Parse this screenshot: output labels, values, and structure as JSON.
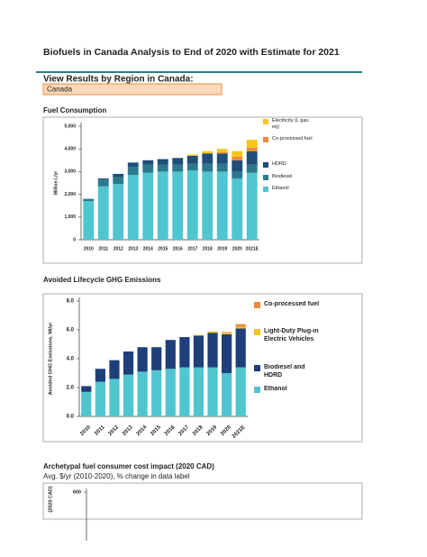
{
  "header": {
    "title": "Biofuels in Canada Analysis to End of 2020 with Estimate for 2021",
    "section": "View Results by Region in Canada:",
    "region": "Canada"
  },
  "chart_data": [
    {
      "type": "bar",
      "stacked": true,
      "title": "Fuel Consumption",
      "ylabel": "Million L/yr",
      "categories": [
        "2010",
        "2011",
        "2012",
        "2013",
        "2014",
        "2015",
        "2016",
        "2017",
        "2018",
        "2019",
        "2020",
        "2021E"
      ],
      "ylim": [
        0,
        5000
      ],
      "yticks": [
        0,
        {
          "value": 1000,
          "label": "1,000"
        },
        {
          "value": 2000,
          "label": "2,000"
        },
        {
          "value": 3000,
          "label": "3,000"
        },
        {
          "value": 4000,
          "label": "4,000"
        },
        {
          "value": 5000,
          "label": "5,000"
        }
      ],
      "series": [
        {
          "name": "Ethanol",
          "color": "#4fc6cf",
          "values": [
            1700,
            2350,
            2450,
            2850,
            2950,
            3000,
            3000,
            3050,
            3000,
            3000,
            2700,
            2950
          ]
        },
        {
          "name": "Biodiesel",
          "color": "#2a7a8c",
          "values": [
            100,
            300,
            300,
            350,
            350,
            300,
            300,
            300,
            350,
            350,
            300,
            350
          ]
        },
        {
          "name": "HDRD",
          "color": "#1f4e79",
          "values": [
            0,
            50,
            150,
            200,
            200,
            250,
            300,
            350,
            450,
            450,
            500,
            600
          ]
        },
        {
          "name": "Co-processed fuel",
          "color": "#f08a3c",
          "values": [
            0,
            0,
            0,
            0,
            0,
            0,
            0,
            0,
            0,
            50,
            150,
            150
          ]
        },
        {
          "name": "Electricity (L gas. eq)",
          "color": "#f5c518",
          "values": [
            0,
            0,
            0,
            0,
            0,
            0,
            0,
            50,
            100,
            150,
            250,
            350
          ]
        }
      ]
    },
    {
      "type": "bar",
      "stacked": true,
      "title": "Avoided Lifecycle GHG Emissions",
      "ylabel": "Avoided GHG Emissions, Mt/yr",
      "categories": [
        "2010",
        "2011",
        "2012",
        "2013",
        "2014",
        "2015",
        "2016",
        "2017",
        "2018",
        "2019",
        "2020",
        "2021E"
      ],
      "ylim": [
        0,
        8
      ],
      "yticks": [
        {
          "value": 0,
          "label": "0.0"
        },
        {
          "value": 2,
          "label": "2.0"
        },
        {
          "value": 4,
          "label": "4.0"
        },
        {
          "value": 6,
          "label": "6.0"
        },
        {
          "value": 8,
          "label": "8.0"
        }
      ],
      "series": [
        {
          "name": "Ethanol",
          "color": "#4fc6cf",
          "values": [
            1.7,
            2.4,
            2.6,
            2.9,
            3.1,
            3.2,
            3.3,
            3.4,
            3.4,
            3.4,
            3.0,
            3.4
          ]
        },
        {
          "name": "Biodiesel and HDRD",
          "color": "#1f3f7a",
          "values": [
            0.4,
            0.9,
            1.3,
            1.6,
            1.7,
            1.6,
            2.0,
            2.1,
            2.2,
            2.4,
            2.7,
            2.7
          ]
        },
        {
          "name": "Light-Duty Plug-in Electric Vehicles",
          "color": "#f5c518",
          "values": [
            0,
            0,
            0,
            0,
            0,
            0,
            0,
            0,
            0.05,
            0.1,
            0.1,
            0.1
          ]
        },
        {
          "name": "Co-processed fuel",
          "color": "#f08a3c",
          "values": [
            0,
            0,
            0,
            0,
            0,
            0,
            0,
            0,
            0,
            0,
            0.05,
            0.2
          ]
        }
      ]
    },
    {
      "type": "axis",
      "title": "Archetypal fuel consumer cost impact (2020 CAD)",
      "subtitle": "Avg. $/yr (2010-2020), % change in data label",
      "ylabel": "(2020 CAD)",
      "yticks": [
        600
      ]
    }
  ]
}
